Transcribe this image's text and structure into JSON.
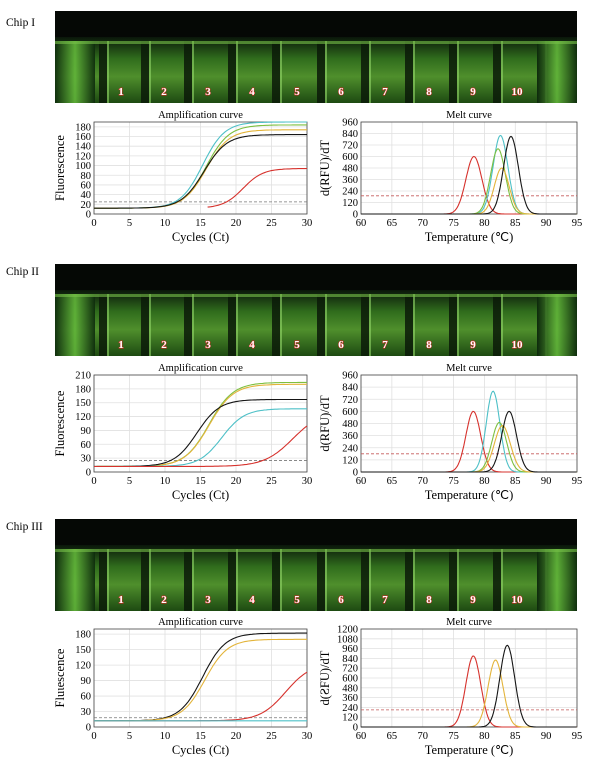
{
  "lane_numbers": [
    "1",
    "2",
    "3",
    "4",
    "5",
    "6",
    "7",
    "8",
    "9",
    "10"
  ],
  "colors": {
    "red": "#d6312c",
    "green": "#7dbf3f",
    "cyan": "#4ec0c7",
    "yellow": "#e3b43a",
    "black": "#151515",
    "threshold_amp": "#777777",
    "threshold_melt": "#c55a5a"
  },
  "chips": [
    {
      "label": "Chip I",
      "amp": {
        "title": "Amplification curve",
        "xlabel": "Cycles (Ct)",
        "ylabel": "Fluorescence",
        "xticks": [
          "0",
          "5",
          "10",
          "15",
          "20",
          "25",
          "30"
        ],
        "yticks": [
          "0",
          "20",
          "40",
          "60",
          "80",
          "100",
          "120",
          "140",
          "160",
          "180"
        ],
        "ymax": 190
      },
      "melt": {
        "title": "Melt curve",
        "xlabel": "Temperature (℃)",
        "ylabel": "d(RFU)/dT",
        "xticks": [
          "60",
          "65",
          "70",
          "75",
          "80",
          "85",
          "90",
          "95"
        ],
        "yticks": [
          "0",
          "120",
          "240",
          "360",
          "480",
          "600",
          "720",
          "840",
          "960"
        ],
        "ymax": 960
      }
    },
    {
      "label": "Chip II",
      "amp": {
        "title": "Amplification curve",
        "xlabel": "Cycles (Ct)",
        "ylabel": "Fluorescence",
        "xticks": [
          "0",
          "5",
          "10",
          "15",
          "20",
          "25",
          "30"
        ],
        "yticks": [
          "0",
          "30",
          "60",
          "90",
          "120",
          "150",
          "180",
          "210"
        ],
        "ymax": 210
      },
      "melt": {
        "title": "Melt curve",
        "xlabel": "Temperature (℃)",
        "ylabel": "d(RFU)/dT",
        "xticks": [
          "60",
          "65",
          "70",
          "75",
          "80",
          "85",
          "90",
          "95"
        ],
        "yticks": [
          "0",
          "120",
          "240",
          "360",
          "480",
          "600",
          "720",
          "840",
          "960"
        ],
        "ymax": 960
      }
    },
    {
      "label": "Chip III",
      "amp": {
        "title": "Amplification curve",
        "xlabel": "Cycles (Ct)",
        "ylabel": "Fluιescence",
        "xticks": [
          "0",
          "5",
          "10",
          "15",
          "20",
          "25",
          "30"
        ],
        "yticks": [
          "0",
          "30",
          "60",
          "90",
          "120",
          "150",
          "180"
        ],
        "ymax": 190
      },
      "melt": {
        "title": "Melt curve",
        "xlabel": "Temperature (℃)",
        "ylabel": "d(ƧFU)/dT",
        "xticks": [
          "60",
          "65",
          "70",
          "75",
          "80",
          "85",
          "90",
          "95"
        ],
        "yticks": [
          "0",
          "120",
          "240",
          "360",
          "480",
          "600",
          "720",
          "840",
          "960",
          "1080",
          "1200"
        ],
        "ymax": 1200
      }
    }
  ],
  "chart_data": [
    {
      "type": "line",
      "chip": "Chip I",
      "title": "Amplification curve",
      "xlabel": "Cycles (Ct)",
      "ylabel": "Fluorescence",
      "xlim": [
        0,
        30
      ],
      "ylim": [
        0,
        190
      ],
      "threshold": 25,
      "series": [
        {
          "color": "cyan",
          "plateau": 178,
          "midpoint": 15.3,
          "slope": 1.55
        },
        {
          "color": "green",
          "plateau": 172,
          "midpoint": 15.8,
          "slope": 1.6
        },
        {
          "color": "yellow",
          "plateau": 162,
          "midpoint": 15.8,
          "slope": 1.6
        },
        {
          "color": "black",
          "plateau": 152,
          "midpoint": 15.5,
          "slope": 1.6
        },
        {
          "color": "red",
          "plateau": 82,
          "midpoint": 21.0,
          "slope": 1.4,
          "start": 16
        }
      ]
    },
    {
      "type": "line",
      "chip": "Chip I",
      "title": "Melt curve",
      "xlabel": "Temperature (℃)",
      "ylabel": "d(RFU)/dT",
      "xlim": [
        60,
        95
      ],
      "ylim": [
        0,
        960
      ],
      "threshold": 190,
      "series": [
        {
          "color": "red",
          "peak_temp": 78.3,
          "height": 600,
          "width": 1.3
        },
        {
          "color": "cyan",
          "peak_temp": 82.6,
          "height": 820,
          "width": 1.2
        },
        {
          "color": "green",
          "peak_temp": 82.2,
          "height": 680,
          "width": 1.2
        },
        {
          "color": "yellow",
          "peak_temp": 82.8,
          "height": 480,
          "width": 1.2
        },
        {
          "color": "black",
          "peak_temp": 84.3,
          "height": 810,
          "width": 1.2
        }
      ]
    },
    {
      "type": "line",
      "chip": "Chip II",
      "title": "Amplification curve",
      "xlabel": "Cycles (Ct)",
      "ylabel": "Fluorescence",
      "xlim": [
        0,
        30
      ],
      "ylim": [
        0,
        210
      ],
      "threshold": 25,
      "series": [
        {
          "color": "green",
          "plateau": 182,
          "midpoint": 16.2,
          "slope": 1.7
        },
        {
          "color": "yellow",
          "plateau": 178,
          "midpoint": 16.2,
          "slope": 1.7
        },
        {
          "color": "black",
          "plateau": 145,
          "midpoint": 14.5,
          "slope": 1.6
        },
        {
          "color": "cyan",
          "plateau": 125,
          "midpoint": 18.0,
          "slope": 1.6
        },
        {
          "color": "red",
          "plateau": 120,
          "midpoint": 28.0,
          "slope": 2.0
        }
      ]
    },
    {
      "type": "line",
      "chip": "Chip II",
      "title": "Melt curve",
      "xlabel": "Temperature (℃)",
      "ylabel": "d(RFU)/dT",
      "xlim": [
        60,
        95
      ],
      "ylim": [
        0,
        960
      ],
      "threshold": 180,
      "series": [
        {
          "color": "red",
          "peak_temp": 78.2,
          "height": 600,
          "width": 1.2
        },
        {
          "color": "cyan",
          "peak_temp": 81.4,
          "height": 800,
          "width": 1.1
        },
        {
          "color": "green",
          "peak_temp": 82.4,
          "height": 490,
          "width": 1.2
        },
        {
          "color": "yellow",
          "peak_temp": 82.9,
          "height": 460,
          "width": 1.3
        },
        {
          "color": "black",
          "peak_temp": 84.0,
          "height": 600,
          "width": 1.2
        }
      ]
    },
    {
      "type": "line",
      "chip": "Chip III",
      "title": "Amplification curve",
      "xlabel": "Cycles (Ct)",
      "ylabel": "Fluιescence",
      "xlim": [
        0,
        30
      ],
      "ylim": [
        0,
        190
      ],
      "threshold": 18,
      "series": [
        {
          "color": "black",
          "plateau": 170,
          "midpoint": 15.3,
          "slope": 1.6
        },
        {
          "color": "yellow",
          "plateau": 158,
          "midpoint": 15.6,
          "slope": 1.6
        },
        {
          "color": "red",
          "plateau": 112,
          "midpoint": 27.0,
          "slope": 1.8
        },
        {
          "color": "cyan",
          "plateau": 0,
          "midpoint": 0,
          "slope": 1,
          "flat": 12
        }
      ]
    },
    {
      "type": "line",
      "chip": "Chip III",
      "title": "Melt curve",
      "xlabel": "Temperature (℃)",
      "ylabel": "d(ƧFU)/dT",
      "xlim": [
        60,
        95
      ],
      "ylim": [
        0,
        1200
      ],
      "threshold": 210,
      "series": [
        {
          "color": "red",
          "peak_temp": 78.2,
          "height": 870,
          "width": 1.2
        },
        {
          "color": "yellow",
          "peak_temp": 81.8,
          "height": 820,
          "width": 1.2
        },
        {
          "color": "black",
          "peak_temp": 83.7,
          "height": 1000,
          "width": 1.2
        }
      ]
    }
  ]
}
